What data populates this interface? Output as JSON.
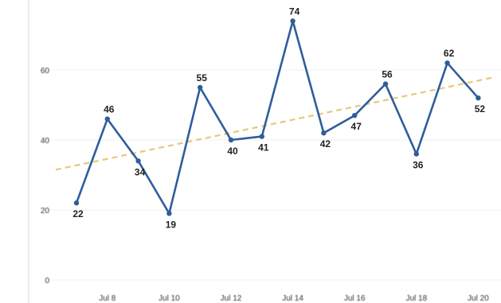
{
  "chart_data": {
    "type": "line",
    "title": "",
    "xlabel": "",
    "ylabel": "",
    "x": [
      "Jul 7",
      "Jul 8",
      "Jul 9",
      "Jul 10",
      "Jul 11",
      "Jul 12",
      "Jul 13",
      "Jul 14",
      "Jul 15",
      "Jul 16",
      "Jul 17",
      "Jul 18",
      "Jul 19",
      "Jul 20"
    ],
    "x_ticks": [
      "Jul 8",
      "Jul 10",
      "Jul 12",
      "Jul 14",
      "Jul 16",
      "Jul 18",
      "Jul 20"
    ],
    "y_ticks": [
      0,
      20,
      40,
      60
    ],
    "ylim": [
      0,
      78
    ],
    "series": [
      {
        "values": [
          22,
          46,
          34,
          19,
          55,
          40,
          41,
          74,
          42,
          47,
          56,
          36,
          62,
          52
        ],
        "color": "#2f5d9b",
        "data_labels": true
      }
    ],
    "trendline": {
      "style": "dashed",
      "color": "#e8c77d",
      "start": 31.5,
      "end": 58
    },
    "grid": true,
    "legend": "none"
  }
}
